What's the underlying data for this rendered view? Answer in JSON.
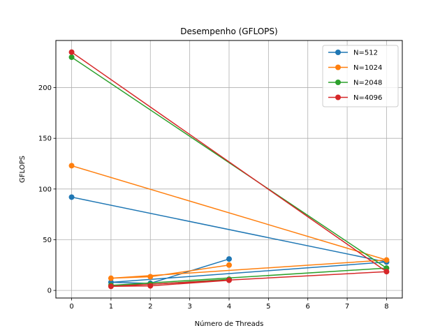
{
  "chart_data": {
    "type": "line",
    "title": "Desempenho (GFLOPS)",
    "xlabel": "Número de Threads",
    "ylabel": "GFLOPS",
    "xlim": [
      -0.4,
      8.4
    ],
    "ylim": [
      -7.5,
      246.5
    ],
    "xticks": [
      0,
      1,
      2,
      3,
      4,
      5,
      6,
      7,
      8
    ],
    "yticks": [
      0,
      50,
      100,
      150,
      200
    ],
    "grid": true,
    "legend_position": "top-right",
    "series": [
      {
        "name": "N=512",
        "color": "#1f77b4",
        "x": [
          0,
          8,
          1,
          2,
          4
        ],
        "y": [
          92,
          28,
          8,
          7,
          31
        ]
      },
      {
        "name": "N=1024",
        "color": "#ff7f0e",
        "x": [
          0,
          8,
          1,
          2,
          4
        ],
        "y": [
          123,
          30,
          12,
          13.5,
          25
        ]
      },
      {
        "name": "N=2048",
        "color": "#2ca02c",
        "x": [
          0,
          8,
          1,
          2,
          4
        ],
        "y": [
          230,
          22,
          5,
          6,
          11
        ]
      },
      {
        "name": "N=4096",
        "color": "#d62728",
        "x": [
          0,
          8,
          1,
          2,
          4
        ],
        "y": [
          235,
          18.5,
          4,
          4.5,
          10
        ]
      }
    ]
  }
}
